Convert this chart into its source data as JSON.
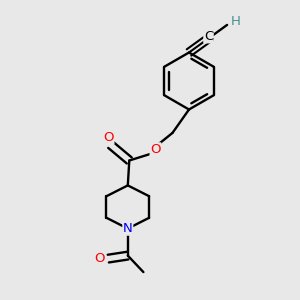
{
  "bg_color": "#e8e8e8",
  "atom_colors": {
    "C": "#000000",
    "O": "#ff0000",
    "N": "#0000ff",
    "H": "#4a9090"
  },
  "figsize": [
    3.0,
    3.0
  ],
  "dpi": 100,
  "bond_lw": 1.7,
  "font_sz": 9.5,
  "xlim": [
    0,
    10
  ],
  "ylim": [
    0,
    10
  ]
}
